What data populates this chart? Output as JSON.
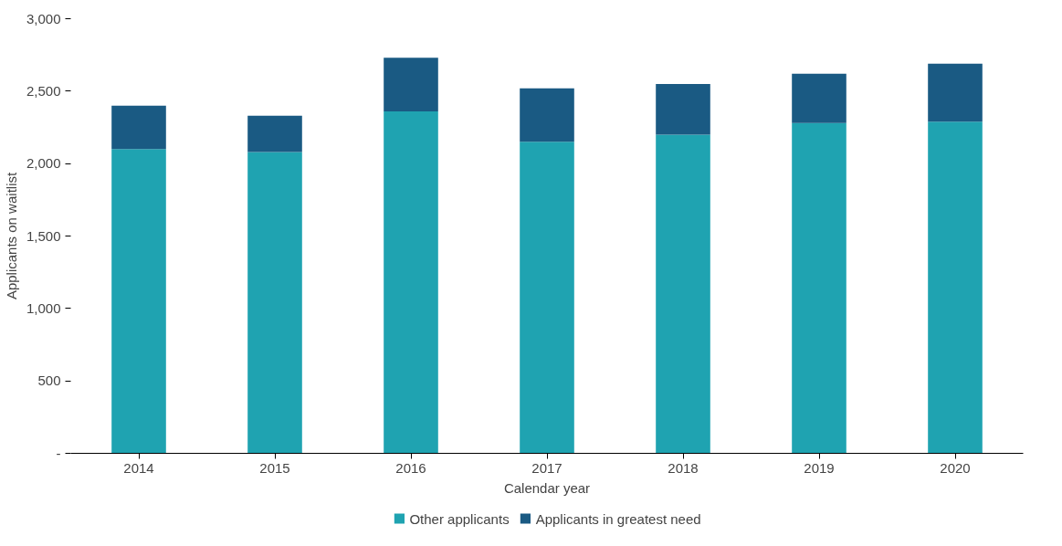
{
  "chart_data": {
    "type": "bar",
    "stacked": true,
    "xlabel": "Calendar year",
    "ylabel": "Applicants on waitlist",
    "categories": [
      "2014",
      "2015",
      "2016",
      "2017",
      "2018",
      "2019",
      "2020"
    ],
    "series": [
      {
        "name": "Other applicants",
        "color": "#1fa3b1",
        "values": [
          2100,
          2080,
          2360,
          2150,
          2200,
          2280,
          2290
        ]
      },
      {
        "name": "Applicants in greatest need",
        "color": "#1a5a83",
        "values": [
          300,
          250,
          370,
          370,
          350,
          340,
          400
        ]
      }
    ],
    "ylim": [
      0,
      3000
    ],
    "yticks": [
      {
        "value": 0,
        "label": "-"
      },
      {
        "value": 500,
        "label": "500"
      },
      {
        "value": 1000,
        "label": "1,000"
      },
      {
        "value": 1500,
        "label": "1,500"
      },
      {
        "value": 2000,
        "label": "2,000"
      },
      {
        "value": 2500,
        "label": "2,500"
      },
      {
        "value": 3000,
        "label": "3,000"
      }
    ],
    "grid": false,
    "legend": "bottom"
  }
}
